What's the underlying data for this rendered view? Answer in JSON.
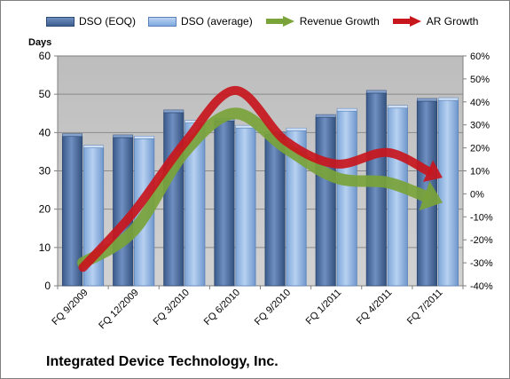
{
  "chart_data": {
    "type": "bar",
    "title": "Integrated Device Technology, Inc.",
    "ylabel": "Days",
    "ylim": [
      0,
      60
    ],
    "yticks": [
      0,
      10,
      20,
      30,
      40,
      50,
      60
    ],
    "y2lim": [
      -0.4,
      0.6
    ],
    "y2ticks": [
      "-40%",
      "-30%",
      "-20%",
      "-10%",
      "0%",
      "10%",
      "20%",
      "30%",
      "40%",
      "50%",
      "60%"
    ],
    "categories": [
      "FQ 9/2009",
      "FQ 12/2009",
      "FQ 3/2010",
      "FQ 6/2010",
      "FQ 9/2010",
      "FQ 1/2011",
      "FQ 4/2011",
      "FQ 7/2011"
    ],
    "series": [
      {
        "name": "DSO (EOQ)",
        "type": "bar",
        "values": [
          39,
          38.7,
          45.2,
          43,
          39.5,
          44,
          50.3,
          48.2
        ]
      },
      {
        "name": "DSO (average)",
        "type": "bar",
        "values": [
          36,
          38.4,
          42.5,
          41.2,
          40.5,
          45.6,
          46.4,
          48.4
        ]
      },
      {
        "name": "Revenue Growth",
        "type": "arrow-line",
        "values": [
          -0.3,
          -0.16,
          0.18,
          0.35,
          0.2,
          0.07,
          0.05,
          -0.03
        ]
      },
      {
        "name": "AR Growth",
        "type": "arrow-line",
        "values": [
          -0.32,
          -0.08,
          0.22,
          0.45,
          0.23,
          0.13,
          0.18,
          0.08
        ]
      }
    ],
    "legend": "top",
    "grid": true,
    "colors": {
      "dso_eoq": "#4a6fa5",
      "dso_avg": "#9dbfe8",
      "revenue_growth": "#7aa33a",
      "ar_growth": "#c8161d",
      "plot_bg": "#c0c0c0"
    }
  }
}
